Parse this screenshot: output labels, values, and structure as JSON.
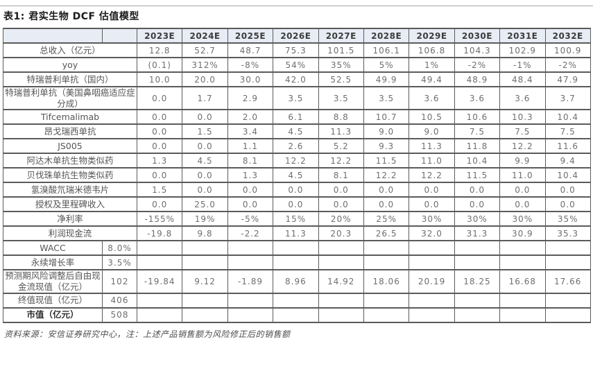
{
  "title": "表1: 君实生物 DCF 估值模型",
  "footer": "资料来源：安信证券研究中心，注：上述产品销售额为风险修正后的销售额",
  "colors": {
    "header_bg": "#e8ecf4",
    "border": "#5a5a5a",
    "number_text": "#6e6e6e",
    "label_text": "#555555"
  },
  "table": {
    "years": [
      "2023E",
      "2024E",
      "2025E",
      "2026E",
      "2027E",
      "2028E",
      "2029E",
      "2030E",
      "2031E",
      "2032E"
    ],
    "rows": [
      {
        "type": "data",
        "label": "总收入（亿元）",
        "values": [
          "12.8",
          "52.7",
          "48.7",
          "75.3",
          "101.5",
          "106.1",
          "106.8",
          "104.3",
          "102.9",
          "100.9"
        ]
      },
      {
        "type": "data",
        "label": "yoy",
        "values": [
          "(0.1)",
          "312%",
          "-8%",
          "54%",
          "35%",
          "5%",
          "1%",
          "-2%",
          "-1%",
          "-2%"
        ]
      },
      {
        "type": "data",
        "label": "特瑞普利单抗（国内）",
        "values": [
          "10.0",
          "20.0",
          "30.0",
          "42.0",
          "52.5",
          "49.9",
          "49.4",
          "48.9",
          "48.4",
          "47.9"
        ]
      },
      {
        "type": "data",
        "tall": true,
        "label": "特瑞普利单抗（美国鼻咽癌适应症分成）",
        "values": [
          "0.0",
          "1.7",
          "2.9",
          "3.5",
          "3.5",
          "3.5",
          "3.6",
          "3.6",
          "3.6",
          "3.7"
        ]
      },
      {
        "type": "data",
        "label": "Tifcemalimab",
        "values": [
          "0.0",
          "0.0",
          "2.0",
          "6.1",
          "8.8",
          "10.7",
          "10.5",
          "10.6",
          "10.3",
          "10.4"
        ]
      },
      {
        "type": "data",
        "label": "昂戈瑞西单抗",
        "values": [
          "0.0",
          "1.5",
          "3.4",
          "4.5",
          "11.3",
          "9.0",
          "9.0",
          "7.5",
          "7.5",
          "7.5"
        ]
      },
      {
        "type": "data",
        "label": "JS005",
        "values": [
          "0.0",
          "0.0",
          "1.1",
          "2.6",
          "5.2",
          "9.3",
          "11.3",
          "11.8",
          "12.2",
          "11.6"
        ]
      },
      {
        "type": "data",
        "label": "阿达木单抗生物类似药",
        "values": [
          "1.3",
          "4.5",
          "8.1",
          "12.2",
          "12.2",
          "11.5",
          "11.0",
          "10.4",
          "9.9",
          "9.4"
        ]
      },
      {
        "type": "data",
        "label": "贝伐珠单抗生物类似药",
        "values": [
          "0.0",
          "0.0",
          "1.3",
          "4.5",
          "8.1",
          "12.2",
          "12.2",
          "11.5",
          "11.0",
          "10.4"
        ]
      },
      {
        "type": "data",
        "label": "氢溴酸氘瑞米德韦片",
        "values": [
          "1.5",
          "0.0",
          "0.0",
          "0.0",
          "0.0",
          "0.0",
          "0.0",
          "0.0",
          "0.0",
          "0.0"
        ]
      },
      {
        "type": "data",
        "label": "授权及里程碑收入",
        "values": [
          "0.0",
          "25.0",
          "0.0",
          "0.0",
          "0.0",
          "0.0",
          "0.0",
          "0.0",
          "0.0",
          "0.0"
        ]
      },
      {
        "type": "data",
        "label": "净利率",
        "values": [
          "-155%",
          "19%",
          "-5%",
          "15%",
          "20%",
          "25%",
          "30%",
          "30%",
          "30%",
          "35%"
        ]
      },
      {
        "type": "data",
        "label": "利润现金流",
        "values": [
          "-19.8",
          "9.8",
          "-2.2",
          "11.3",
          "20.3",
          "26.5",
          "32.0",
          "31.3",
          "30.9",
          "35.3"
        ]
      },
      {
        "type": "summary",
        "label": "WACC",
        "value": "8.0%",
        "values": []
      },
      {
        "type": "summary",
        "label": "永续增长率",
        "value": "3.5%",
        "values": []
      },
      {
        "type": "summary",
        "tall": true,
        "label": "预测期风险调整后自由现金流现值（亿元）",
        "value": "102",
        "values": [
          "-19.84",
          "9.12",
          "-1.89",
          "8.96",
          "14.92",
          "18.06",
          "20.19",
          "18.25",
          "16.68",
          "17.66"
        ]
      },
      {
        "type": "summary",
        "label": "终值现值（亿元）",
        "value": "406",
        "values": []
      },
      {
        "type": "summary",
        "bold": true,
        "label": "市值（亿元）",
        "value": "508",
        "values": []
      }
    ]
  }
}
